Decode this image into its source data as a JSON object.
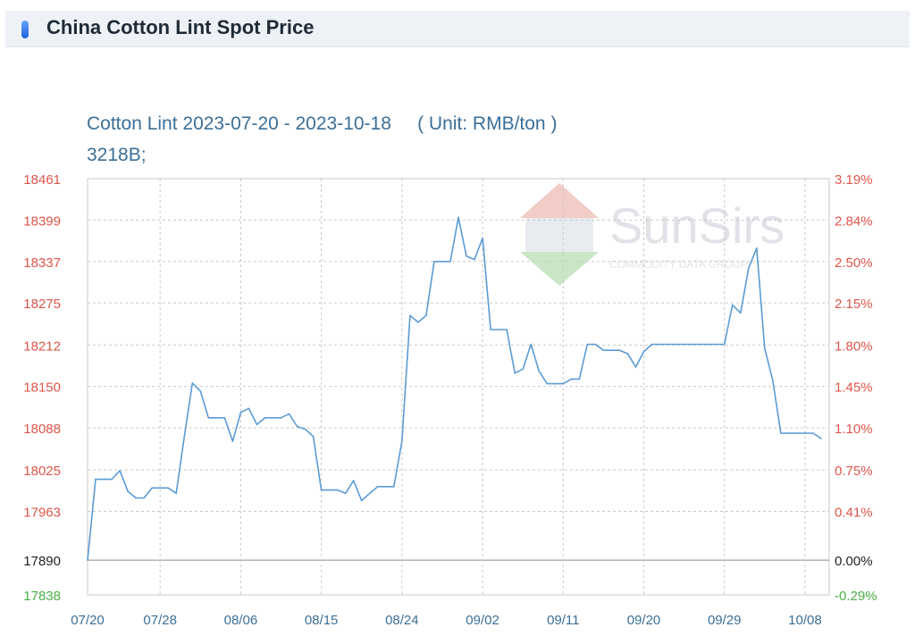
{
  "header": {
    "title": "China Cotton Lint Spot Price"
  },
  "chart_title": {
    "line1": "Cotton Lint 2023-07-20 - 2023-10-18     ( Unit: RMB/ton )",
    "line2": "3218B;"
  },
  "watermark": {
    "brand": "SunSirs",
    "tagline": "COMMODITY DATA GROUP"
  },
  "colors": {
    "line": "#5b9bd5",
    "grid": "#c9c9c9",
    "axis_up": "#e0554a",
    "axis_down": "#49b043",
    "axis_base": "#222222",
    "title": "#3b6f98"
  },
  "chart_data": {
    "type": "line",
    "title": "Cotton Lint 2023-07-20 - 2023-10-18     ( Unit: RMB/ton )",
    "subtitle": "3218B;",
    "x_ticks": [
      "07/20",
      "07/28",
      "08/06",
      "08/15",
      "08/24",
      "09/02",
      "09/11",
      "09/20",
      "09/29",
      "10/08"
    ],
    "y_ticks_left": [
      "18461",
      "18399",
      "18337",
      "18275",
      "18212",
      "18150",
      "18088",
      "18025",
      "17963",
      "17890",
      "17838"
    ],
    "y_ticks_right": [
      "3.19%",
      "2.84%",
      "2.50%",
      "2.15%",
      "1.80%",
      "1.45%",
      "1.10%",
      "0.75%",
      "0.41%",
      "0.00%",
      "-0.29%"
    ],
    "ylim": [
      17838,
      18461
    ],
    "baseline": 17890,
    "grid": true,
    "series": [
      {
        "values": [
          [
            0,
            17890
          ],
          [
            1,
            18011
          ],
          [
            2,
            18011
          ],
          [
            3,
            18011
          ],
          [
            4,
            18024
          ],
          [
            5,
            17993
          ],
          [
            6,
            17983
          ],
          [
            7,
            17983
          ],
          [
            8,
            17998
          ],
          [
            9,
            17998
          ],
          [
            10,
            17998
          ],
          [
            11,
            17990
          ],
          [
            12,
            18075
          ],
          [
            13,
            18155
          ],
          [
            14,
            18143
          ],
          [
            15,
            18103
          ],
          [
            16,
            18103
          ],
          [
            17,
            18103
          ],
          [
            18,
            18068
          ],
          [
            19,
            18111
          ],
          [
            20,
            18117
          ],
          [
            21,
            18093
          ],
          [
            22,
            18103
          ],
          [
            23,
            18103
          ],
          [
            24,
            18103
          ],
          [
            25,
            18109
          ],
          [
            26,
            18090
          ],
          [
            27,
            18086
          ],
          [
            28,
            18075
          ],
          [
            29,
            17995
          ],
          [
            30,
            17995
          ],
          [
            31,
            17995
          ],
          [
            32,
            17990
          ],
          [
            33,
            18009
          ],
          [
            34,
            17979
          ],
          [
            35,
            17990
          ],
          [
            36,
            18000
          ],
          [
            37,
            18000
          ],
          [
            38,
            18000
          ],
          [
            39,
            18068
          ],
          [
            40,
            18256
          ],
          [
            41,
            18246
          ],
          [
            42,
            18256
          ],
          [
            43,
            18337
          ],
          [
            44,
            18337
          ],
          [
            45,
            18337
          ],
          [
            46,
            18403
          ],
          [
            47,
            18345
          ],
          [
            48,
            18340
          ],
          [
            49,
            18372
          ],
          [
            50,
            18235
          ],
          [
            51,
            18235
          ],
          [
            52,
            18235
          ],
          [
            53,
            18170
          ],
          [
            54,
            18176
          ],
          [
            55,
            18213
          ],
          [
            56,
            18173
          ],
          [
            57,
            18154
          ],
          [
            58,
            18154
          ],
          [
            59,
            18154
          ],
          [
            60,
            18161
          ],
          [
            61,
            18161
          ],
          [
            62,
            18213
          ],
          [
            63,
            18213
          ],
          [
            64,
            18204
          ],
          [
            65,
            18204
          ],
          [
            66,
            18204
          ],
          [
            67,
            18199
          ],
          [
            68,
            18179
          ],
          [
            69,
            18202
          ],
          [
            70,
            18213
          ],
          [
            71,
            18213
          ],
          [
            72,
            18213
          ],
          [
            73,
            18213
          ],
          [
            74,
            18213
          ],
          [
            75,
            18213
          ],
          [
            76,
            18213
          ],
          [
            77,
            18213
          ],
          [
            78,
            18213
          ],
          [
            79,
            18213
          ],
          [
            80,
            18272
          ],
          [
            81,
            18260
          ],
          [
            82,
            18327
          ],
          [
            83,
            18357
          ],
          [
            84,
            18207
          ],
          [
            85,
            18159
          ],
          [
            86,
            18080
          ],
          [
            87,
            18080
          ],
          [
            88,
            18080
          ],
          [
            89,
            18080
          ],
          [
            90,
            18080
          ],
          [
            91,
            18072
          ]
        ]
      }
    ]
  }
}
